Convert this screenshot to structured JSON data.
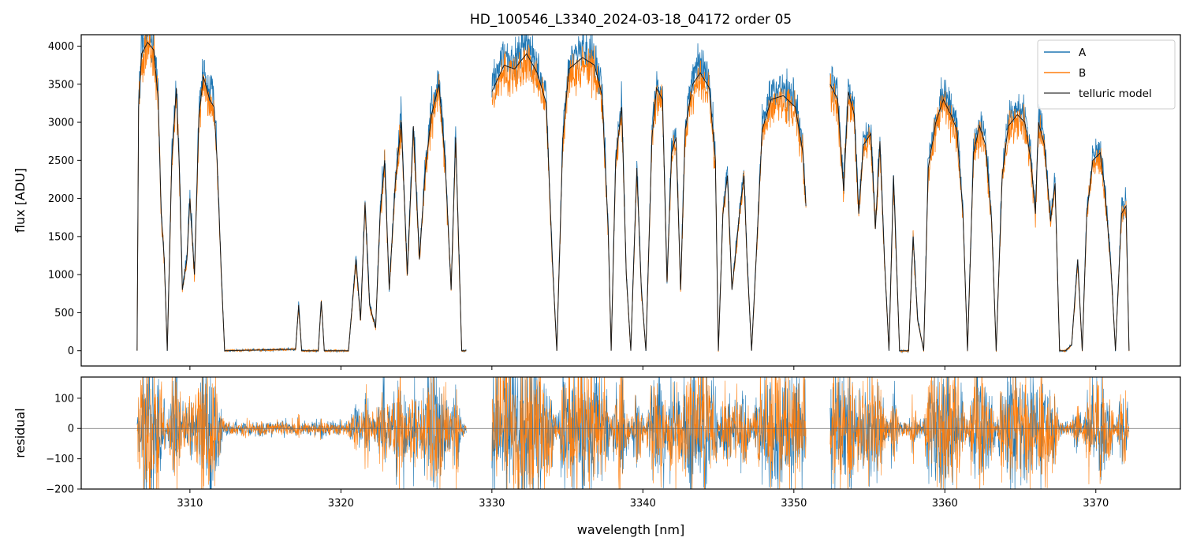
{
  "chart_data": [
    {
      "panel": "main",
      "type": "line",
      "title": "HD_100546_L3340_2024-03-18_04172  order 05",
      "xlabel": "",
      "ylabel": "flux [ADU]",
      "xlim": [
        3302.8,
        3375.6
      ],
      "ylim": [
        -200,
        4150
      ],
      "xticks": [
        3310,
        3320,
        3330,
        3340,
        3350,
        3360,
        3370
      ],
      "yticks": [
        0,
        500,
        1000,
        1500,
        2000,
        2500,
        3000,
        3500,
        4000
      ],
      "ytick_labels": [
        "0",
        "500",
        "1000",
        "1500",
        "2000",
        "2500",
        "3000",
        "3500",
        "4000"
      ],
      "legend_position": "upper right",
      "series": [
        {
          "name": "A",
          "color": "#1f77b4",
          "scale": 1.03
        },
        {
          "name": "B",
          "color": "#ff7f0e",
          "scale": 0.975
        },
        {
          "name": "telluric model",
          "color": "#3a3a3a"
        }
      ],
      "segments": [
        {
          "range": [
            3306.5,
            3328.3
          ]
        },
        {
          "range": [
            3330.0,
            3350.8
          ]
        },
        {
          "range": [
            3352.4,
            3372.2
          ]
        }
      ],
      "model_knots": [
        [
          3306.5,
          0
        ],
        [
          3306.6,
          3200
        ],
        [
          3306.8,
          3900
        ],
        [
          3307.2,
          4050
        ],
        [
          3307.6,
          3950
        ],
        [
          3307.9,
          3300
        ],
        [
          3308.1,
          1800
        ],
        [
          3308.3,
          1200
        ],
        [
          3308.5,
          0
        ],
        [
          3308.8,
          2500
        ],
        [
          3309.1,
          3450
        ],
        [
          3309.3,
          2400
        ],
        [
          3309.5,
          800
        ],
        [
          3309.8,
          1200
        ],
        [
          3310.0,
          2000
        ],
        [
          3310.3,
          1000
        ],
        [
          3310.6,
          3100
        ],
        [
          3310.9,
          3600
        ],
        [
          3311.3,
          3300
        ],
        [
          3311.6,
          3200
        ],
        [
          3311.8,
          2500
        ],
        [
          3312.1,
          900
        ],
        [
          3312.3,
          0
        ],
        [
          3317.0,
          20
        ],
        [
          3317.2,
          600
        ],
        [
          3317.4,
          0
        ],
        [
          3318.5,
          0
        ],
        [
          3318.7,
          650
        ],
        [
          3318.9,
          0
        ],
        [
          3320.5,
          0
        ],
        [
          3321.0,
          1200
        ],
        [
          3321.3,
          400
        ],
        [
          3321.6,
          1950
        ],
        [
          3321.9,
          600
        ],
        [
          3322.3,
          300
        ],
        [
          3322.6,
          1800
        ],
        [
          3322.9,
          2500
        ],
        [
          3323.2,
          800
        ],
        [
          3323.6,
          2200
        ],
        [
          3324.0,
          3000
        ],
        [
          3324.4,
          1000
        ],
        [
          3324.8,
          2950
        ],
        [
          3325.2,
          1200
        ],
        [
          3325.6,
          2400
        ],
        [
          3326.0,
          3100
        ],
        [
          3326.5,
          3500
        ],
        [
          3326.9,
          2500
        ],
        [
          3327.3,
          800
        ],
        [
          3327.6,
          2800
        ],
        [
          3328.0,
          0
        ],
        [
          3328.3,
          0
        ],
        [
          3330.0,
          3400
        ],
        [
          3330.8,
          3750
        ],
        [
          3331.5,
          3700
        ],
        [
          3332.3,
          3900
        ],
        [
          3333.0,
          3650
        ],
        [
          3333.6,
          3250
        ],
        [
          3334.0,
          1200
        ],
        [
          3334.3,
          0
        ],
        [
          3334.7,
          2800
        ],
        [
          3335.1,
          3700
        ],
        [
          3336.0,
          3850
        ],
        [
          3336.8,
          3750
        ],
        [
          3337.3,
          3350
        ],
        [
          3337.7,
          1600
        ],
        [
          3337.9,
          0
        ],
        [
          3338.2,
          2500
        ],
        [
          3338.6,
          3200
        ],
        [
          3338.9,
          1000
        ],
        [
          3339.2,
          0
        ],
        [
          3339.6,
          2400
        ],
        [
          3339.9,
          800
        ],
        [
          3340.2,
          0
        ],
        [
          3340.6,
          2800
        ],
        [
          3340.9,
          3450
        ],
        [
          3341.3,
          3300
        ],
        [
          3341.6,
          900
        ],
        [
          3341.9,
          2600
        ],
        [
          3342.2,
          2800
        ],
        [
          3342.5,
          800
        ],
        [
          3342.8,
          2900
        ],
        [
          3343.3,
          3500
        ],
        [
          3343.8,
          3650
        ],
        [
          3344.4,
          3450
        ],
        [
          3344.8,
          2500
        ],
        [
          3345.0,
          0
        ],
        [
          3345.3,
          1800
        ],
        [
          3345.6,
          2300
        ],
        [
          3345.9,
          800
        ],
        [
          3346.1,
          1200
        ],
        [
          3346.4,
          1800
        ],
        [
          3346.7,
          2300
        ],
        [
          3346.9,
          1200
        ],
        [
          3347.2,
          0
        ],
        [
          3347.5,
          1200
        ],
        [
          3347.9,
          2900
        ],
        [
          3348.5,
          3300
        ],
        [
          3349.3,
          3350
        ],
        [
          3350.1,
          3200
        ],
        [
          3350.6,
          2600
        ],
        [
          3350.8,
          1900
        ],
        [
          3352.4,
          3500
        ],
        [
          3352.9,
          3300
        ],
        [
          3353.3,
          2100
        ],
        [
          3353.6,
          3400
        ],
        [
          3354.0,
          3100
        ],
        [
          3354.3,
          1800
        ],
        [
          3354.6,
          2700
        ],
        [
          3355.1,
          2850
        ],
        [
          3355.4,
          1600
        ],
        [
          3355.7,
          2750
        ],
        [
          3356.0,
          1200
        ],
        [
          3356.3,
          0
        ],
        [
          3356.6,
          2300
        ],
        [
          3357.0,
          0
        ],
        [
          3357.6,
          0
        ],
        [
          3357.9,
          1500
        ],
        [
          3358.2,
          400
        ],
        [
          3358.6,
          0
        ],
        [
          3358.9,
          2400
        ],
        [
          3359.4,
          3000
        ],
        [
          3359.9,
          3300
        ],
        [
          3360.4,
          3100
        ],
        [
          3360.8,
          2900
        ],
        [
          3361.2,
          1800
        ],
        [
          3361.5,
          0
        ],
        [
          3361.9,
          2600
        ],
        [
          3362.3,
          2950
        ],
        [
          3362.7,
          2700
        ],
        [
          3363.1,
          1700
        ],
        [
          3363.4,
          0
        ],
        [
          3363.8,
          2300
        ],
        [
          3364.2,
          2950
        ],
        [
          3364.8,
          3100
        ],
        [
          3365.3,
          3000
        ],
        [
          3365.7,
          2500
        ],
        [
          3366.0,
          1800
        ],
        [
          3366.2,
          3000
        ],
        [
          3366.6,
          2700
        ],
        [
          3367.0,
          1700
        ],
        [
          3367.3,
          2200
        ],
        [
          3367.6,
          0
        ],
        [
          3368.0,
          0
        ],
        [
          3368.4,
          80
        ],
        [
          3368.8,
          1200
        ],
        [
          3369.1,
          0
        ],
        [
          3369.4,
          1800
        ],
        [
          3369.8,
          2500
        ],
        [
          3370.3,
          2600
        ],
        [
          3370.6,
          2100
        ],
        [
          3371.0,
          1100
        ],
        [
          3371.3,
          0
        ],
        [
          3371.7,
          1800
        ],
        [
          3372.0,
          1900
        ],
        [
          3372.2,
          0
        ]
      ]
    },
    {
      "panel": "residual",
      "type": "line",
      "xlabel": "wavelength [nm]",
      "ylabel": "residual",
      "xlim": [
        3302.8,
        3375.6
      ],
      "ylim": [
        -200,
        170
      ],
      "xticks": [
        3310,
        3320,
        3330,
        3340,
        3350,
        3360,
        3370
      ],
      "xtick_labels": [
        "3310",
        "3320",
        "3330",
        "3340",
        "3350",
        "3360",
        "3370"
      ],
      "yticks": [
        -200,
        -100,
        0,
        100
      ],
      "ytick_labels": [
        "−200",
        "−100",
        "0",
        "100"
      ],
      "zero_line": true,
      "series": [
        {
          "name": "A",
          "color": "#1f77b4"
        },
        {
          "name": "B",
          "color": "#ff7f0e"
        }
      ]
    }
  ]
}
